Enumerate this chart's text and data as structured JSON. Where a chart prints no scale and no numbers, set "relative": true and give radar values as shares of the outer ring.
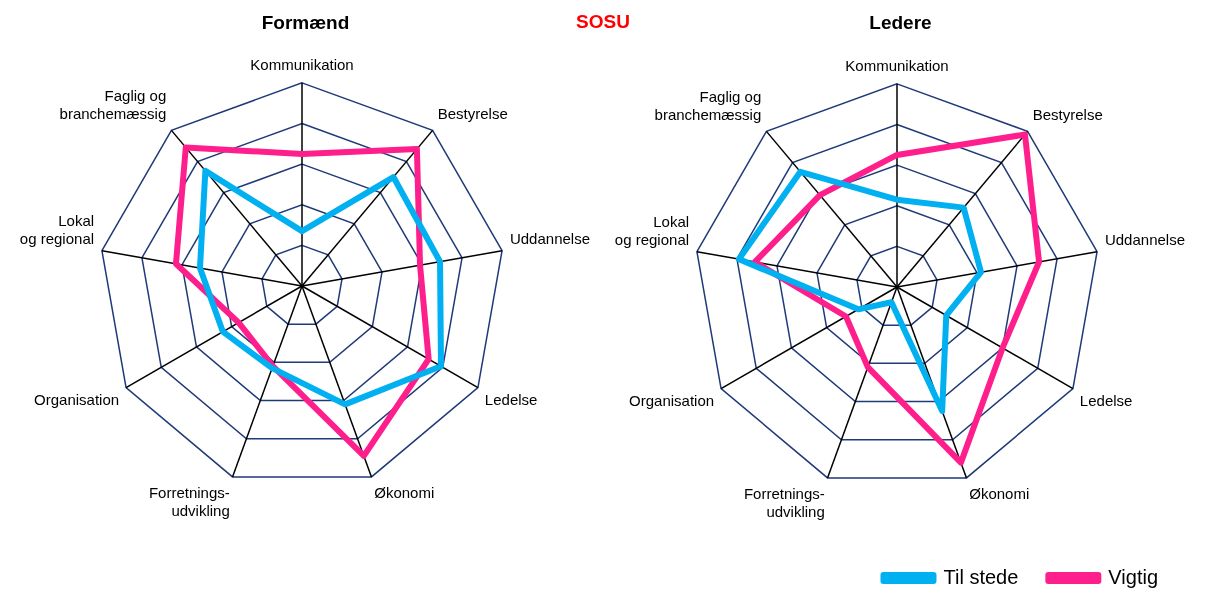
{
  "chart_data": [
    {
      "type": "radar",
      "title": "Formænd",
      "relative": true,
      "grid": true,
      "marker": "none",
      "legend": false,
      "annotations": [
        "SOSU"
      ],
      "categories": [
        "Kommunikation",
        "Bestyrelse",
        "Uddannelse",
        "Ledelse",
        "Økonomi",
        "Forretnings-\nudvikling",
        "Organisation",
        "Lokal\nog regional",
        "Faglig og\nbranchemæssig"
      ],
      "series": [
        {
          "color": "#00b0f0",
          "values": [
            0.27,
            0.7,
            0.69,
            0.79,
            0.62,
            0.43,
            0.45,
            0.51,
            0.74
          ]
        },
        {
          "color": "#ff1f8c",
          "values": [
            0.65,
            0.88,
            0.59,
            0.72,
            0.89,
            0.42,
            0.36,
            0.63,
            0.89
          ]
        }
      ]
    },
    {
      "type": "radar",
      "title": "Ledere",
      "relative": true,
      "grid": true,
      "marker": "none",
      "legend": "bottom right",
      "categories": [
        "Kommunikation",
        "Bestyrelse",
        "Uddannelse",
        "Ledelse",
        "Økonomi",
        "Forretnings-\nudvikling",
        "Organisation",
        "Lokal\nog regional",
        "Faglig og\nbranchemæssig"
      ],
      "series": [
        {
          "name": "Til stede",
          "color": "#00b0f0",
          "values": [
            0.43,
            0.51,
            0.42,
            0.28,
            0.65,
            0.08,
            0.22,
            0.79,
            0.74
          ]
        },
        {
          "name": "Vigtig",
          "color": "#ff1f8c",
          "values": [
            0.65,
            0.98,
            0.71,
            0.6,
            0.92,
            0.42,
            0.29,
            0.71,
            0.59
          ]
        }
      ]
    }
  ]
}
